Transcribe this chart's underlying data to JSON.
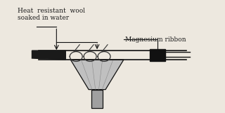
{
  "bg_color": "#ede8df",
  "text_color": "#1a1a1a",
  "label_wool": "Heat  resistant  wool\nsoaked in water",
  "label_mg": "Magnesium ribbon",
  "figsize": [
    3.2,
    1.61
  ],
  "dpi": 100
}
